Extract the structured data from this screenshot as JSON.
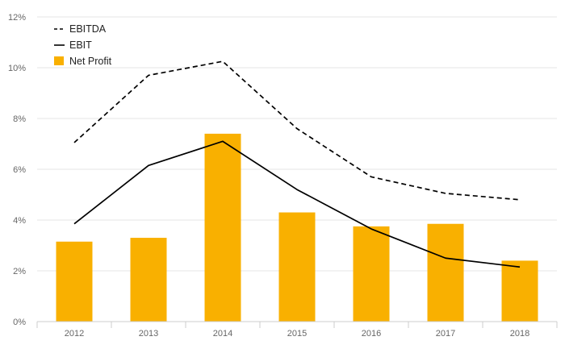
{
  "chart_data": {
    "type": "bar",
    "categories": [
      "2012",
      "2013",
      "2014",
      "2015",
      "2016",
      "2017",
      "2018"
    ],
    "ylim": [
      0,
      12
    ],
    "yticks": [
      "0%",
      "2%",
      "4%",
      "6%",
      "8%",
      "10%",
      "12%"
    ],
    "ytick_values": [
      0,
      2,
      4,
      6,
      8,
      10,
      12
    ],
    "grid": "horizontal",
    "legend_position": "top-left",
    "series": [
      {
        "name": "EBITDA",
        "kind": "line",
        "style": "dashed",
        "color": "#000000",
        "values": [
          7.05,
          9.7,
          10.25,
          7.6,
          5.7,
          5.05,
          4.8
        ]
      },
      {
        "name": "EBIT",
        "kind": "line",
        "style": "solid",
        "color": "#000000",
        "values": [
          3.85,
          6.15,
          7.1,
          5.2,
          3.65,
          2.5,
          2.15
        ]
      },
      {
        "name": "Net Profit",
        "kind": "bar",
        "color": "#F9B000",
        "values": [
          3.15,
          3.3,
          7.4,
          4.3,
          3.75,
          3.85,
          2.4
        ]
      }
    ]
  }
}
